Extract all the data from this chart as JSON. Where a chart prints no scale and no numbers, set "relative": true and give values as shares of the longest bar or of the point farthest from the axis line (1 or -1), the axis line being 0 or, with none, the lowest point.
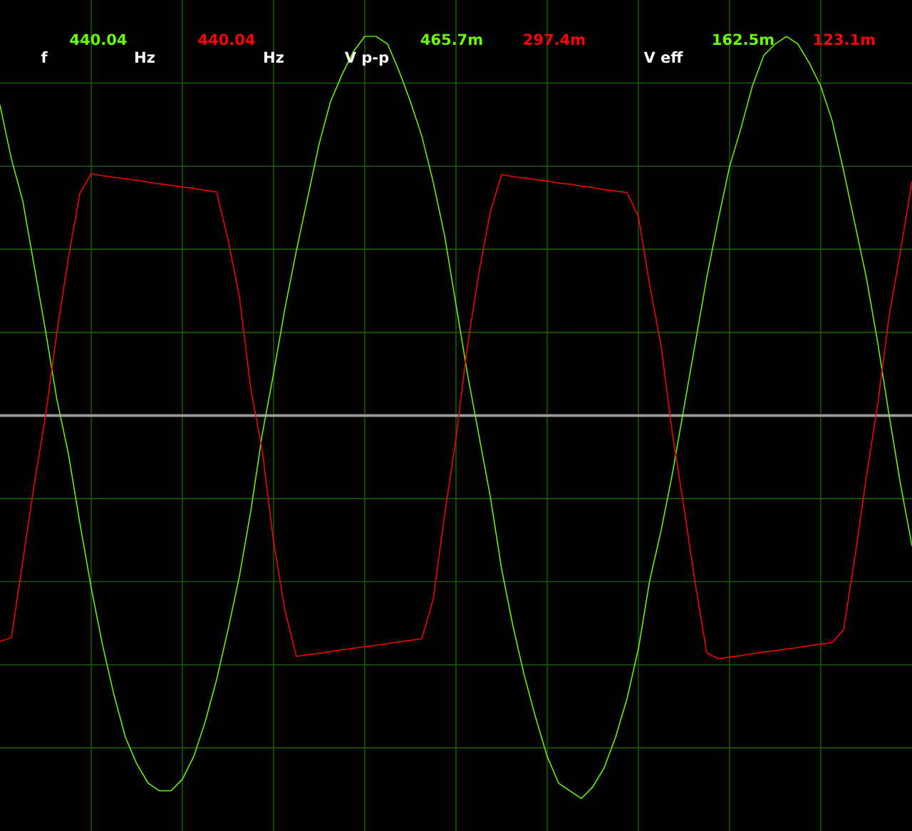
{
  "chart_data": {
    "type": "line",
    "relative": true,
    "grid": true,
    "categories": [
      null,
      null,
      null,
      null,
      null,
      null,
      null,
      null,
      null,
      null,
      null,
      null,
      null,
      null,
      null,
      null,
      null,
      null,
      null,
      null,
      null,
      null,
      null,
      null,
      null,
      null,
      null,
      null,
      null,
      null,
      null,
      null,
      null,
      null,
      null,
      null,
      null,
      null,
      null,
      null,
      null,
      null,
      null,
      null,
      null,
      null,
      null,
      null,
      null,
      null,
      null,
      null,
      null,
      null,
      null,
      null,
      null,
      null,
      null,
      null,
      null,
      null,
      null,
      null,
      null,
      null,
      null,
      null,
      null,
      null,
      null,
      null,
      null,
      null,
      null,
      null,
      null,
      null,
      null,
      null,
      null
    ],
    "series": [
      {
        "color": "#66ff00",
        "values": [
          0.81,
          0.67,
          0.56,
          0.39,
          0.22,
          0.04,
          -0.1,
          -0.28,
          -0.45,
          -0.6,
          -0.73,
          -0.84,
          -0.91,
          -0.96,
          -0.98,
          -0.98,
          -0.95,
          -0.89,
          -0.8,
          -0.69,
          -0.56,
          -0.42,
          -0.25,
          -0.05,
          0.11,
          0.28,
          0.43,
          0.57,
          0.71,
          0.82,
          0.89,
          0.95,
          0.99,
          0.99,
          0.97,
          0.9,
          0.82,
          0.73,
          0.61,
          0.47,
          0.29,
          0.11,
          -0.05,
          -0.21,
          -0.4,
          -0.55,
          -0.68,
          -0.79,
          -0.89,
          -0.96,
          -0.98,
          -1.0,
          -0.97,
          -0.92,
          -0.84,
          -0.74,
          -0.61,
          -0.43,
          -0.3,
          -0.15,
          0.02,
          0.19,
          0.36,
          0.51,
          0.65,
          0.75,
          0.86,
          0.94,
          0.97,
          0.99,
          0.97,
          0.92,
          0.86,
          0.77,
          0.64,
          0.5,
          0.36,
          0.19,
          0.0,
          -0.18,
          -0.34
        ]
      },
      {
        "color": "#ff0000",
        "values": [
          -0.59,
          -0.58,
          -0.38,
          -0.18,
          0.0,
          0.22,
          0.41,
          0.58,
          0.631,
          0.626,
          0.622,
          0.618,
          0.614,
          0.609,
          0.605,
          0.601,
          0.597,
          0.593,
          0.588,
          0.584,
          0.46,
          0.31,
          0.07,
          -0.09,
          -0.33,
          -0.51,
          -0.629,
          -0.625,
          -0.621,
          -0.617,
          -0.612,
          -0.608,
          -0.604,
          -0.6,
          -0.596,
          -0.591,
          -0.587,
          -0.583,
          -0.48,
          -0.26,
          -0.06,
          0.18,
          0.37,
          0.53,
          0.629,
          0.624,
          0.62,
          0.616,
          0.612,
          0.607,
          0.604,
          0.599,
          0.595,
          0.59,
          0.586,
          0.582,
          0.52,
          0.34,
          0.18,
          -0.05,
          -0.24,
          -0.44,
          -0.62,
          -0.635,
          -0.631,
          -0.627,
          -0.622,
          -0.618,
          -0.614,
          -0.61,
          -0.606,
          -0.601,
          -0.597,
          -0.593,
          -0.56,
          -0.37,
          -0.16,
          0.03,
          0.26,
          0.43,
          0.61
        ]
      }
    ],
    "annotations": [
      "440.04",
      "440.04",
      "465.7m",
      "297.4m",
      "162.5m",
      "123.1m",
      "f",
      "Hz",
      "Hz",
      "V p-p",
      "V eff"
    ]
  }
}
